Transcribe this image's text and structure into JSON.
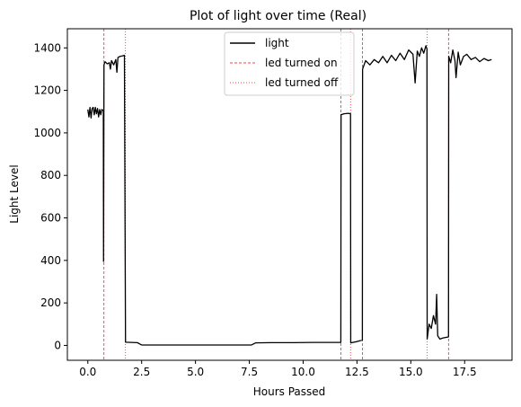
{
  "chart_data": {
    "type": "line",
    "title": "Plot of light over time (Real)",
    "xlabel": "Hours Passed",
    "ylabel": "Light Level",
    "xlim": [
      -0.95,
      19.7
    ],
    "ylim": [
      -70,
      1490
    ],
    "xticks": [
      0.0,
      2.5,
      5.0,
      7.5,
      10.0,
      12.5,
      15.0,
      17.5
    ],
    "xtick_labels": [
      "0.0",
      "2.5",
      "5.0",
      "7.5",
      "10.0",
      "12.5",
      "15.0",
      "17.5"
    ],
    "yticks": [
      0,
      200,
      400,
      600,
      800,
      1000,
      1200,
      1400
    ],
    "ytick_labels": [
      "0",
      "200",
      "400",
      "600",
      "800",
      "1000",
      "1200",
      "1400"
    ],
    "grid": false,
    "legend_position": "top-center",
    "series": [
      {
        "name": "light",
        "color": "#000000",
        "style": "solid",
        "x": [
          0.0,
          0.05,
          0.1,
          0.15,
          0.2,
          0.25,
          0.3,
          0.35,
          0.4,
          0.45,
          0.5,
          0.55,
          0.6,
          0.65,
          0.72,
          0.73,
          0.75,
          0.8,
          0.9,
          1.0,
          1.05,
          1.1,
          1.2,
          1.3,
          1.35,
          1.4,
          1.5,
          1.6,
          1.7,
          1.75,
          1.76,
          2.0,
          2.3,
          2.5,
          3.0,
          4.0,
          5.0,
          6.0,
          7.0,
          7.6,
          7.8,
          8.5,
          9.5,
          10.5,
          11.5,
          11.75,
          11.76,
          11.9,
          12.1,
          12.2,
          12.21,
          12.5,
          12.75,
          12.76,
          12.9,
          13.1,
          13.3,
          13.5,
          13.7,
          13.9,
          14.1,
          14.3,
          14.5,
          14.7,
          14.9,
          15.1,
          15.2,
          15.3,
          15.4,
          15.5,
          15.6,
          15.7,
          15.75,
          15.76,
          15.85,
          15.95,
          16.05,
          16.15,
          16.2,
          16.25,
          16.35,
          16.5,
          16.75,
          16.76,
          16.85,
          16.95,
          17.05,
          17.1,
          17.2,
          17.3,
          17.45,
          17.6,
          17.8,
          18.0,
          18.2,
          18.4,
          18.6,
          18.75
        ],
        "values": [
          1110,
          1075,
          1120,
          1070,
          1115,
          1120,
          1085,
          1120,
          1090,
          1115,
          1075,
          1110,
          1085,
          1110,
          1105,
          395,
          1320,
          1335,
          1325,
          1330,
          1300,
          1340,
          1320,
          1345,
          1285,
          1355,
          1360,
          1362,
          1365,
          15,
          15,
          14,
          13,
          2,
          2,
          2,
          2,
          2,
          2,
          2,
          12,
          13,
          13,
          14,
          14,
          14,
          1085,
          1090,
          1092,
          1090,
          12,
          18,
          25,
          1300,
          1340,
          1320,
          1345,
          1330,
          1360,
          1330,
          1365,
          1340,
          1375,
          1345,
          1390,
          1370,
          1235,
          1385,
          1360,
          1400,
          1375,
          1410,
          1395,
          30,
          100,
          80,
          140,
          100,
          240,
          45,
          30,
          35,
          40,
          1360,
          1330,
          1390,
          1340,
          1260,
          1380,
          1320,
          1360,
          1370,
          1345,
          1355,
          1335,
          1350,
          1340,
          1345
        ]
      },
      {
        "name": "led turned on",
        "color": "#ff0000",
        "style": "dashed",
        "vlines": [
          0.75,
          11.75,
          12.75,
          16.75
        ]
      },
      {
        "name": "led turned off",
        "color": "#ff0000",
        "style": "dotted",
        "vlines": [
          1.75,
          12.2,
          15.75
        ]
      }
    ]
  }
}
